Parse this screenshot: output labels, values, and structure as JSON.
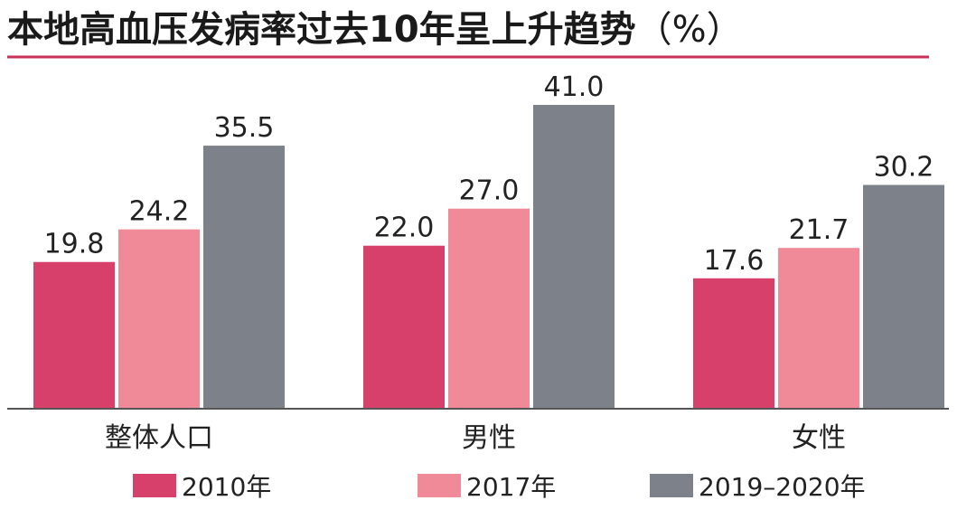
{
  "chart_data": {
    "type": "bar",
    "title": "本地高血压发病率过去10年呈上升趋势",
    "unit": "（%）",
    "categories": [
      "整体人口",
      "男性",
      "女性"
    ],
    "series": [
      {
        "name": "2010年",
        "values": [
          19.8,
          22.0,
          17.6
        ],
        "color": "#d6406a"
      },
      {
        "name": "2017年",
        "values": [
          24.2,
          27.0,
          21.7
        ],
        "color": "#f08a98"
      },
      {
        "name": "2019–2020年",
        "values": [
          35.5,
          41.0,
          30.2
        ],
        "color": "#7d8189"
      }
    ],
    "value_labels": [
      [
        "19.8",
        "22.0",
        "17.6"
      ],
      [
        "24.2",
        "27.0",
        "21.7"
      ],
      [
        "35.5",
        "41.0",
        "30.2"
      ]
    ],
    "ylim": [
      0,
      41.0
    ],
    "grid": false,
    "legend_position": "bottom"
  },
  "colors": {
    "title_rule": "#c8325a",
    "axis": "#555555"
  }
}
